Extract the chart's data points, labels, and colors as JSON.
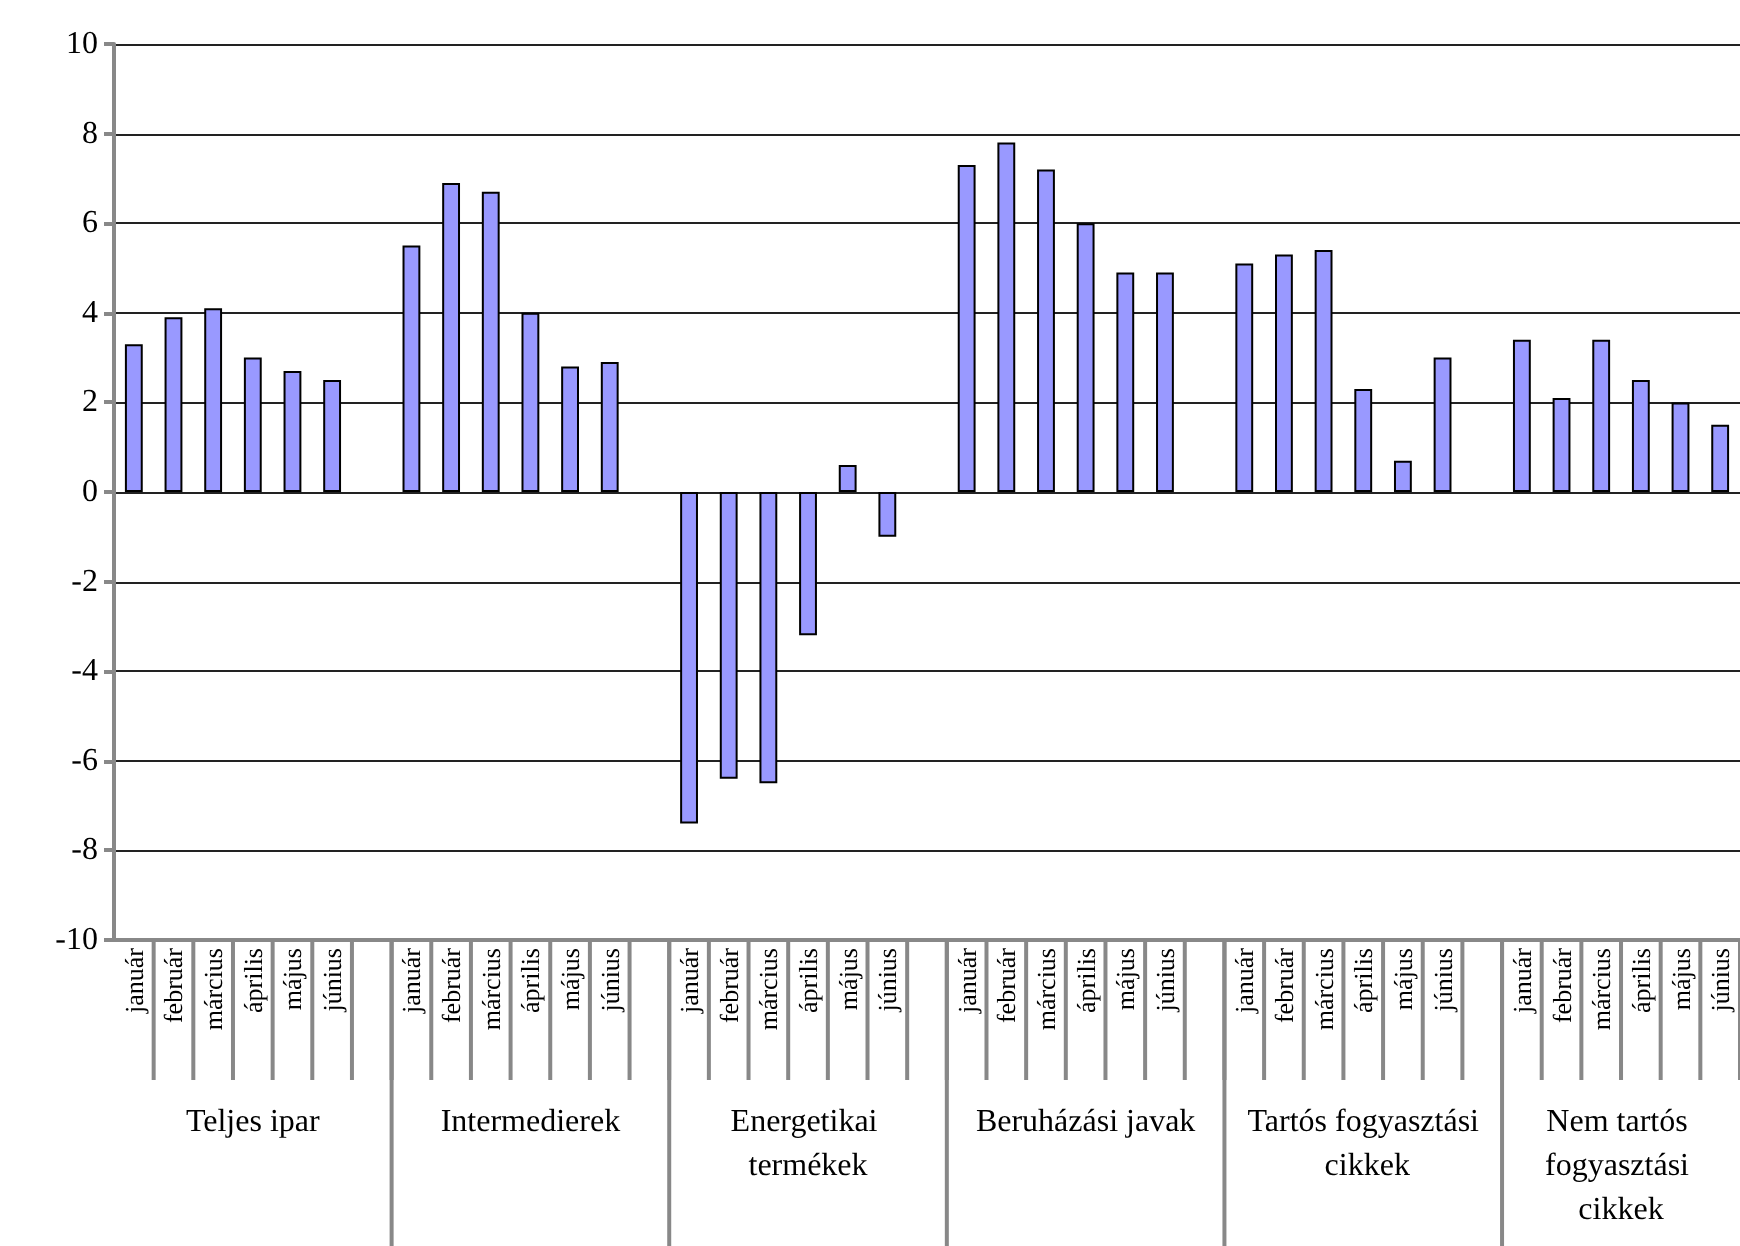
{
  "chart_data": {
    "type": "bar",
    "categories": [
      "január",
      "február",
      "március",
      "április",
      "május",
      "június",
      null,
      "január",
      "február",
      "március",
      "április",
      "május",
      "június",
      null,
      "január",
      "február",
      "március",
      "április",
      "május",
      "június",
      null,
      "január",
      "február",
      "március",
      "április",
      "május",
      "június",
      null,
      "január",
      "február",
      "március",
      "április",
      "május",
      "június",
      null,
      "január",
      "február",
      "március",
      "április",
      "május",
      "június"
    ],
    "values": [
      3.3,
      3.9,
      4.1,
      3.0,
      2.7,
      2.5,
      null,
      5.5,
      6.9,
      6.7,
      4.0,
      2.8,
      2.9,
      null,
      -7.4,
      -6.4,
      -6.5,
      -3.2,
      0.6,
      -1.0,
      null,
      7.3,
      7.8,
      7.2,
      6.0,
      4.9,
      4.9,
      null,
      5.1,
      5.3,
      5.4,
      2.3,
      0.7,
      3.0,
      null,
      3.4,
      2.1,
      3.4,
      2.5,
      2.0,
      1.5
    ],
    "color": "#9999ff",
    "ylim": [
      -10,
      10
    ],
    "yticks": [
      -10,
      -8,
      -6,
      -4,
      -2,
      0,
      2,
      4,
      6,
      8,
      10
    ],
    "grid": "y",
    "annotations": [
      "Teljes ipar",
      "Intermedierek",
      "Energetikai termékek",
      "Beruházási javak",
      "Tartós fogyasztási cikkek",
      "Nem tartós fogyasztási cikkek"
    ]
  }
}
